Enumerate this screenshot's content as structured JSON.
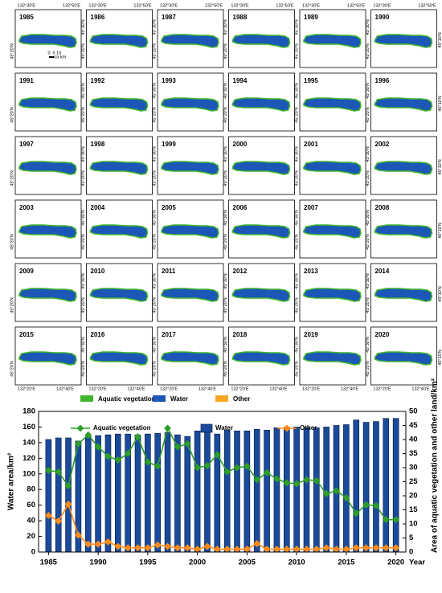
{
  "maps": {
    "years": [
      1985,
      1986,
      1987,
      1988,
      1989,
      1990,
      1991,
      1992,
      1993,
      1994,
      1995,
      1996,
      1997,
      1998,
      1999,
      2000,
      2001,
      2002,
      2003,
      2004,
      2005,
      2006,
      2007,
      2008,
      2009,
      2010,
      2011,
      2012,
      2013,
      2014,
      2015,
      2016,
      2017,
      2018,
      2019,
      2020
    ],
    "lon_top": [
      "132°30′E",
      "132°50′E"
    ],
    "lon_bottom": [
      "132°20′E",
      "132°40′E"
    ],
    "lat_left": [
      "45°30′N",
      "45°20′N"
    ],
    "lat_right": "45°10′N",
    "scale_ticks": [
      0,
      5,
      10
    ],
    "scale_unit": "km",
    "legend": [
      {
        "name": "Aquatic vegetation",
        "color": "#3fb62c"
      },
      {
        "name": "Water",
        "color": "#1c57b8"
      },
      {
        "name": "Other",
        "color": "#f5a623"
      }
    ]
  },
  "chart_data": {
    "type": "bar-line",
    "x": [
      1985,
      1986,
      1987,
      1988,
      1989,
      1990,
      1991,
      1992,
      1993,
      1994,
      1995,
      1996,
      1997,
      1998,
      1999,
      2000,
      2001,
      2002,
      2003,
      2004,
      2005,
      2006,
      2007,
      2008,
      2009,
      2010,
      2011,
      2012,
      2013,
      2014,
      2015,
      2016,
      2017,
      2018,
      2019,
      2020
    ],
    "xlim": [
      1984,
      2021
    ],
    "xticks": [
      1985,
      1990,
      1995,
      2000,
      2005,
      2010,
      2015,
      2020
    ],
    "x_label": "Year",
    "y_label": "Water area/km²",
    "y2_label": "Area of aquatic vegetation and other land/km²",
    "ylim": [
      0,
      180
    ],
    "yticks": [
      0,
      20,
      40,
      60,
      80,
      100,
      120,
      140,
      160,
      180
    ],
    "y2lim": [
      0,
      50
    ],
    "y2ticks": [
      0,
      5,
      10,
      15,
      20,
      25,
      30,
      35,
      40,
      45,
      50
    ],
    "series": [
      {
        "name": "Aquatic vegetation",
        "color": "#2e9e2a",
        "kind": "line",
        "axis": "y2",
        "values": [
          29,
          28.5,
          23.5,
          38.5,
          41.6,
          37.4,
          34,
          32.7,
          35,
          41,
          32,
          30.5,
          44,
          37.4,
          38.5,
          30,
          30.7,
          34.6,
          28.5,
          30,
          30.5,
          25.7,
          28.2,
          26,
          24.6,
          24.3,
          25.7,
          25.4,
          20.7,
          21.8,
          19.3,
          13.7,
          16.8,
          16.5,
          11.5,
          11.5
        ]
      },
      {
        "name": "Water",
        "color": "#1a4a9a",
        "kind": "bar",
        "axis": "y",
        "values": [
          144,
          146,
          146,
          142,
          148,
          149,
          150,
          151,
          151,
          150,
          151,
          152,
          153,
          150,
          148,
          155,
          153,
          151,
          156,
          155,
          155,
          157,
          156,
          159,
          160,
          160,
          159,
          159,
          160,
          162,
          163,
          169,
          166,
          167,
          171,
          171
        ]
      },
      {
        "name": "Other",
        "color": "#ff8c1a",
        "kind": "line",
        "axis": "y2",
        "values": [
          13,
          11,
          17,
          6,
          2.8,
          2.8,
          3.6,
          2,
          1.5,
          1.5,
          1.5,
          2.5,
          2,
          1.5,
          1.5,
          1,
          2,
          1,
          1,
          1,
          1,
          3,
          1,
          1,
          1,
          1,
          1,
          1,
          1.5,
          1,
          1,
          1.5,
          1.5,
          1.5,
          1.5,
          1.5
        ]
      }
    ]
  }
}
